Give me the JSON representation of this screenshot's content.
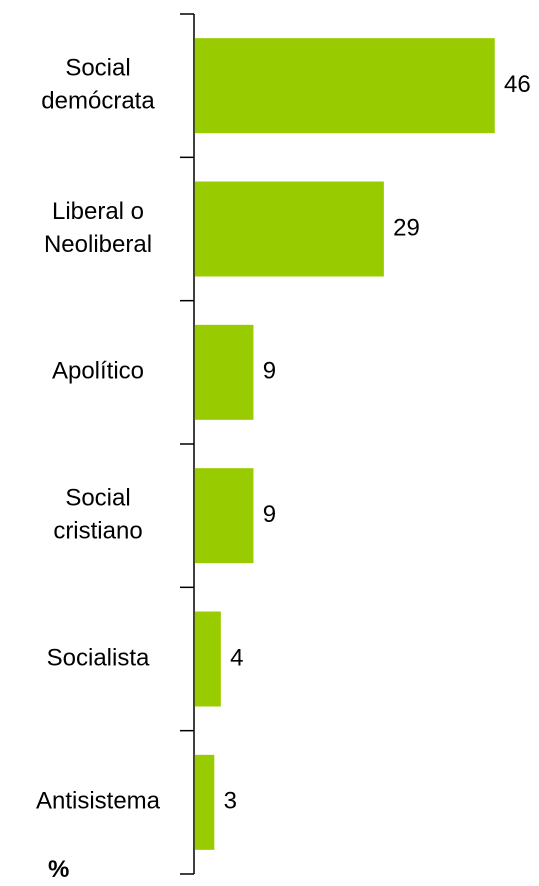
{
  "chart_data": {
    "type": "bar",
    "orientation": "horizontal",
    "categories": [
      [
        "Social",
        "demócrata"
      ],
      [
        "Liberal o",
        "Neoliberal"
      ],
      [
        "Apolítico"
      ],
      [
        "Social",
        "cristiano"
      ],
      [
        "Socialista"
      ],
      [
        "Antisistema"
      ]
    ],
    "values": [
      46,
      29,
      9,
      9,
      4,
      3
    ],
    "data_labels": [
      "46",
      "29",
      "9",
      "9",
      "4",
      "3"
    ],
    "unit_label": "%",
    "xlim": [
      0,
      46
    ],
    "grid": false,
    "legend": "none",
    "colors": {
      "bar": "#99CC00",
      "axis": "#000000",
      "text": "#000000"
    }
  }
}
